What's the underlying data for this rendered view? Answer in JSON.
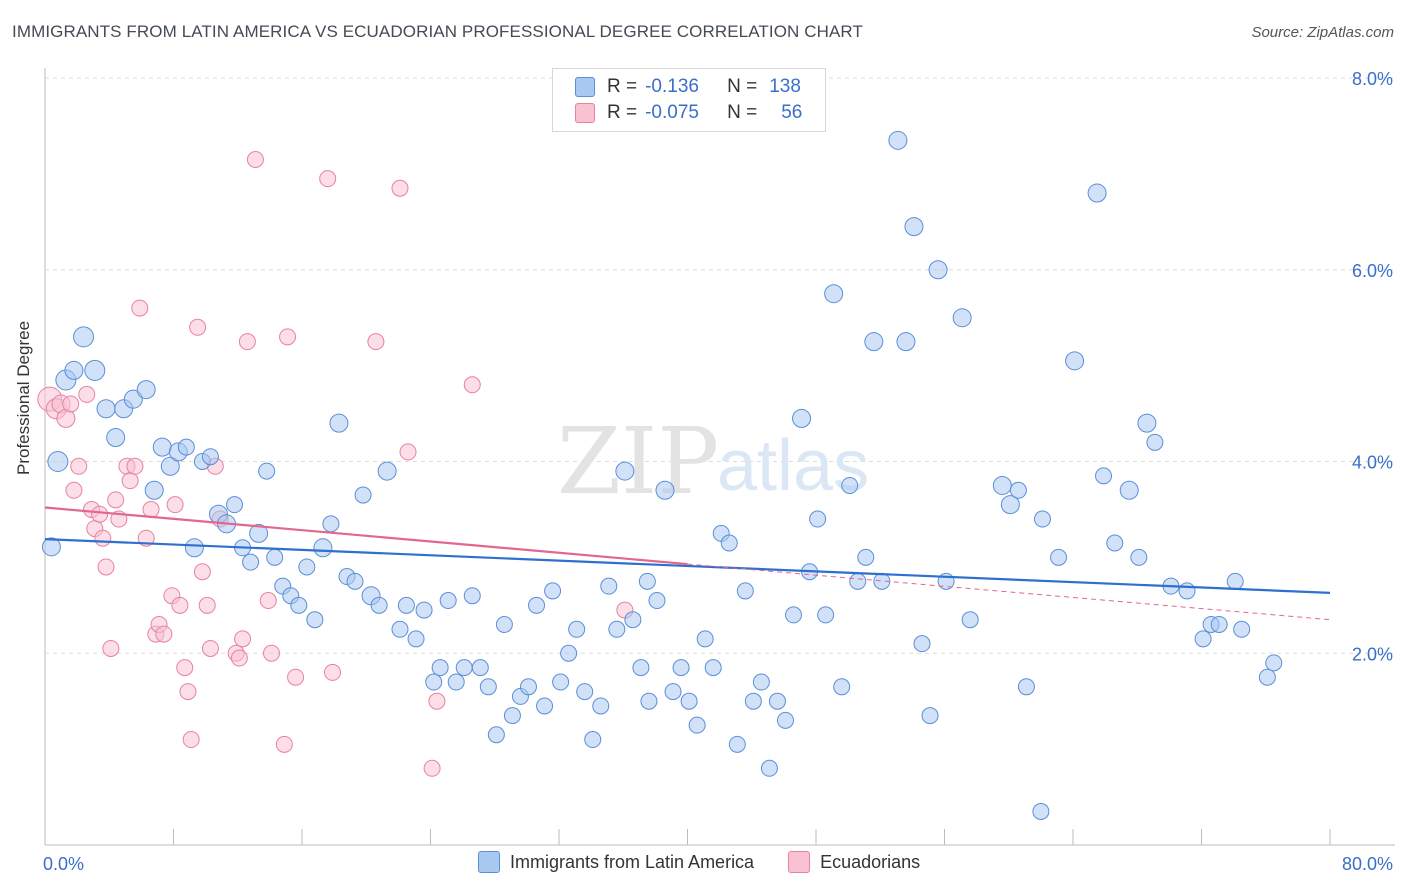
{
  "header": {
    "title": "IMMIGRANTS FROM LATIN AMERICA VS ECUADORIAN PROFESSIONAL DEGREE CORRELATION CHART",
    "source": "Source: ZipAtlas.com"
  },
  "watermark": {
    "zip": "ZIP",
    "atlas": "atlas"
  },
  "legend_top": {
    "rows": [
      {
        "r_label": "R =",
        "r_value": "-0.136",
        "n_label": "N =",
        "n_value": "138",
        "color": "#a9c8f2",
        "border": "#5b8fd6"
      },
      {
        "r_label": "R =",
        "r_value": "-0.075",
        "n_label": "N =",
        "n_value": "56",
        "color": "#f8c2d3",
        "border": "#e8829f"
      }
    ]
  },
  "legend_bottom": {
    "items": [
      {
        "label": "Immigrants from Latin America",
        "color": "#a9c8f2",
        "border": "#5b8fd6"
      },
      {
        "label": "Ecuadorians",
        "color": "#f8c2d3",
        "border": "#e8829f"
      }
    ]
  },
  "chart_data": {
    "type": "scatter",
    "title": "IMMIGRANTS FROM LATIN AMERICA VS ECUADORIAN PROFESSIONAL DEGREE CORRELATION CHART",
    "xlabel": "",
    "ylabel": "Professional Degree",
    "xlim": [
      0,
      80
    ],
    "ylim": [
      0,
      8
    ],
    "x_tick_labels": [
      "0.0%",
      "80.0%"
    ],
    "y_tick_labels": [
      "2.0%",
      "4.0%",
      "6.0%",
      "8.0%"
    ],
    "y_ticks": [
      2,
      4,
      6,
      8
    ],
    "grid": "horizontal dashed",
    "legend_placement": "top-center and bottom",
    "colors": {
      "blue": "#5b8fd6",
      "blue_fill": "#a9c8f2",
      "pink": "#e8829f",
      "pink_fill": "#f8c2d3",
      "blue_line": "#2f6fd0",
      "pink_line": "#e36590",
      "tick_text": "#3a6fc9"
    },
    "series": [
      {
        "name": "Immigrants from Latin America",
        "r": -0.136,
        "n": 138,
        "trend": {
          "x0": 0,
          "y0": 3.19,
          "x1": 80,
          "y1": 2.63
        },
        "points": [
          [
            0.4,
            3.11,
            9
          ],
          [
            0.8,
            4.0,
            10
          ],
          [
            1.3,
            4.85,
            10
          ],
          [
            1.8,
            4.95,
            9
          ],
          [
            2.4,
            5.3,
            10
          ],
          [
            3.1,
            4.95,
            10
          ],
          [
            3.8,
            4.55,
            9
          ],
          [
            4.4,
            4.25,
            9
          ],
          [
            4.9,
            4.55,
            9
          ],
          [
            5.5,
            4.65,
            9
          ],
          [
            6.3,
            4.75,
            9
          ],
          [
            6.8,
            3.7,
            9
          ],
          [
            7.3,
            4.15,
            9
          ],
          [
            7.8,
            3.95,
            9
          ],
          [
            8.3,
            4.1,
            9
          ],
          [
            8.8,
            4.15,
            8
          ],
          [
            9.3,
            3.1,
            9
          ],
          [
            9.8,
            4.0,
            8
          ],
          [
            10.3,
            4.05,
            8
          ],
          [
            10.8,
            3.45,
            9
          ],
          [
            11.3,
            3.35,
            9
          ],
          [
            11.8,
            3.55,
            8
          ],
          [
            12.3,
            3.1,
            8
          ],
          [
            12.8,
            2.95,
            8
          ],
          [
            13.3,
            3.25,
            9
          ],
          [
            13.8,
            3.9,
            8
          ],
          [
            14.3,
            3.0,
            8
          ],
          [
            14.8,
            2.7,
            8
          ],
          [
            15.3,
            2.6,
            8
          ],
          [
            15.8,
            2.5,
            8
          ],
          [
            16.3,
            2.9,
            8
          ],
          [
            16.8,
            2.35,
            8
          ],
          [
            17.3,
            3.1,
            9
          ],
          [
            17.8,
            3.35,
            8
          ],
          [
            18.3,
            4.4,
            9
          ],
          [
            18.8,
            2.8,
            8
          ],
          [
            19.3,
            2.75,
            8
          ],
          [
            19.8,
            3.65,
            8
          ],
          [
            20.3,
            2.6,
            9
          ],
          [
            20.8,
            2.5,
            8
          ],
          [
            21.3,
            3.9,
            9
          ],
          [
            22.1,
            2.25,
            8
          ],
          [
            22.5,
            2.5,
            8
          ],
          [
            23.1,
            2.15,
            8
          ],
          [
            23.6,
            2.45,
            8
          ],
          [
            24.2,
            1.7,
            8
          ],
          [
            24.6,
            1.85,
            8
          ],
          [
            25.1,
            2.55,
            8
          ],
          [
            25.6,
            1.7,
            8
          ],
          [
            26.1,
            1.85,
            8
          ],
          [
            26.6,
            2.6,
            8
          ],
          [
            27.1,
            1.85,
            8
          ],
          [
            27.6,
            1.65,
            8
          ],
          [
            28.1,
            1.15,
            8
          ],
          [
            28.6,
            2.3,
            8
          ],
          [
            29.1,
            1.35,
            8
          ],
          [
            29.6,
            1.55,
            8
          ],
          [
            30.1,
            1.65,
            8
          ],
          [
            30.6,
            2.5,
            8
          ],
          [
            31.1,
            1.45,
            8
          ],
          [
            31.6,
            2.65,
            8
          ],
          [
            32.1,
            1.7,
            8
          ],
          [
            32.6,
            2.0,
            8
          ],
          [
            33.1,
            2.25,
            8
          ],
          [
            33.6,
            1.6,
            8
          ],
          [
            34.1,
            1.1,
            8
          ],
          [
            34.6,
            1.45,
            8
          ],
          [
            35.1,
            2.7,
            8
          ],
          [
            35.6,
            2.25,
            8
          ],
          [
            36.1,
            3.9,
            9
          ],
          [
            36.6,
            2.35,
            8
          ],
          [
            37.1,
            1.85,
            8
          ],
          [
            37.6,
            1.5,
            8
          ],
          [
            38.1,
            2.55,
            8
          ],
          [
            38.6,
            3.7,
            9
          ],
          [
            39.1,
            1.6,
            8
          ],
          [
            39.6,
            1.85,
            8
          ],
          [
            40.1,
            1.5,
            8
          ],
          [
            40.6,
            1.25,
            8
          ],
          [
            41.1,
            2.15,
            8
          ],
          [
            41.6,
            1.85,
            8
          ],
          [
            42.1,
            3.25,
            8
          ],
          [
            42.6,
            3.15,
            8
          ],
          [
            43.1,
            1.05,
            8
          ],
          [
            43.6,
            2.65,
            8
          ],
          [
            44.1,
            1.5,
            8
          ],
          [
            44.6,
            1.7,
            8
          ],
          [
            45.1,
            0.8,
            8
          ],
          [
            45.6,
            1.5,
            8
          ],
          [
            46.1,
            1.3,
            8
          ],
          [
            46.6,
            2.4,
            8
          ],
          [
            47.1,
            4.45,
            9
          ],
          [
            47.6,
            2.85,
            8
          ],
          [
            48.1,
            3.4,
            8
          ],
          [
            48.6,
            2.4,
            8
          ],
          [
            49.1,
            5.75,
            9
          ],
          [
            49.6,
            1.65,
            8
          ],
          [
            50.1,
            3.75,
            8
          ],
          [
            50.6,
            2.75,
            8
          ],
          [
            51.1,
            3.0,
            8
          ],
          [
            51.6,
            5.25,
            9
          ],
          [
            52.1,
            2.75,
            8
          ],
          [
            53.1,
            7.35,
            9
          ],
          [
            53.6,
            5.25,
            9
          ],
          [
            54.1,
            6.45,
            9
          ],
          [
            54.6,
            2.1,
            8
          ],
          [
            55.1,
            1.35,
            8
          ],
          [
            55.6,
            6.0,
            9
          ],
          [
            56.1,
            2.75,
            8
          ],
          [
            57.1,
            5.5,
            9
          ],
          [
            57.6,
            2.35,
            8
          ],
          [
            59.6,
            3.75,
            9
          ],
          [
            60.1,
            3.55,
            9
          ],
          [
            60.6,
            3.7,
            8
          ],
          [
            61.1,
            1.65,
            8
          ],
          [
            62.1,
            3.4,
            8
          ],
          [
            63.1,
            3.0,
            8
          ],
          [
            64.1,
            5.05,
            9
          ],
          [
            65.5,
            6.8,
            9
          ],
          [
            65.9,
            3.85,
            8
          ],
          [
            66.6,
            3.15,
            8
          ],
          [
            67.5,
            3.7,
            9
          ],
          [
            68.1,
            3.0,
            8
          ],
          [
            68.6,
            4.4,
            9
          ],
          [
            69.1,
            4.2,
            8
          ],
          [
            70.1,
            2.7,
            8
          ],
          [
            71.1,
            2.65,
            8
          ],
          [
            72.1,
            2.15,
            8
          ],
          [
            72.6,
            2.3,
            8
          ],
          [
            73.1,
            2.3,
            8
          ],
          [
            74.1,
            2.75,
            8
          ],
          [
            74.5,
            2.25,
            8
          ],
          [
            76.1,
            1.75,
            8
          ],
          [
            76.5,
            1.9,
            8
          ],
          [
            62.0,
            0.35,
            8
          ],
          [
            37.5,
            2.75,
            8
          ]
        ]
      },
      {
        "name": "Ecuadorians",
        "r": -0.075,
        "n": 56,
        "trend_solid": {
          "x0": 0,
          "y0": 3.52,
          "x1": 40,
          "y1": 2.93
        },
        "trend_dashed": {
          "x0": 40,
          "y0": 2.93,
          "x1": 80,
          "y1": 2.35
        },
        "points": [
          [
            0.3,
            4.65,
            12
          ],
          [
            0.7,
            4.55,
            10
          ],
          [
            1.0,
            4.6,
            9
          ],
          [
            1.3,
            4.45,
            9
          ],
          [
            1.6,
            4.6,
            8
          ],
          [
            1.8,
            3.7,
            8
          ],
          [
            2.1,
            3.95,
            8
          ],
          [
            2.6,
            4.7,
            8
          ],
          [
            2.9,
            3.5,
            8
          ],
          [
            3.1,
            3.3,
            8
          ],
          [
            3.4,
            3.45,
            8
          ],
          [
            3.6,
            3.2,
            8
          ],
          [
            3.8,
            2.9,
            8
          ],
          [
            4.1,
            2.05,
            8
          ],
          [
            4.4,
            3.6,
            8
          ],
          [
            4.6,
            3.4,
            8
          ],
          [
            5.1,
            3.95,
            8
          ],
          [
            5.3,
            3.8,
            8
          ],
          [
            5.6,
            3.95,
            8
          ],
          [
            5.9,
            5.6,
            8
          ],
          [
            6.3,
            3.2,
            8
          ],
          [
            6.6,
            3.5,
            8
          ],
          [
            6.9,
            2.2,
            8
          ],
          [
            7.1,
            2.3,
            8
          ],
          [
            7.4,
            2.2,
            8
          ],
          [
            7.9,
            2.6,
            8
          ],
          [
            8.1,
            3.55,
            8
          ],
          [
            8.4,
            2.5,
            8
          ],
          [
            8.7,
            1.85,
            8
          ],
          [
            8.9,
            1.6,
            8
          ],
          [
            9.1,
            1.1,
            8
          ],
          [
            9.5,
            5.4,
            8
          ],
          [
            9.8,
            2.85,
            8
          ],
          [
            10.1,
            2.5,
            8
          ],
          [
            10.3,
            2.05,
            8
          ],
          [
            10.6,
            3.95,
            8
          ],
          [
            10.9,
            3.4,
            8
          ],
          [
            11.9,
            2.0,
            8
          ],
          [
            12.1,
            1.95,
            8
          ],
          [
            12.3,
            2.15,
            8
          ],
          [
            12.6,
            5.25,
            8
          ],
          [
            13.1,
            7.15,
            8
          ],
          [
            13.9,
            2.55,
            8
          ],
          [
            14.1,
            2.0,
            8
          ],
          [
            14.9,
            1.05,
            8
          ],
          [
            15.1,
            5.3,
            8
          ],
          [
            15.6,
            1.75,
            8
          ],
          [
            17.6,
            6.95,
            8
          ],
          [
            17.9,
            1.8,
            8
          ],
          [
            20.6,
            5.25,
            8
          ],
          [
            22.1,
            6.85,
            8
          ],
          [
            22.6,
            4.1,
            8
          ],
          [
            24.1,
            0.8,
            8
          ],
          [
            24.4,
            1.5,
            8
          ],
          [
            26.6,
            4.8,
            8
          ],
          [
            36.1,
            2.45,
            8
          ]
        ]
      }
    ]
  }
}
